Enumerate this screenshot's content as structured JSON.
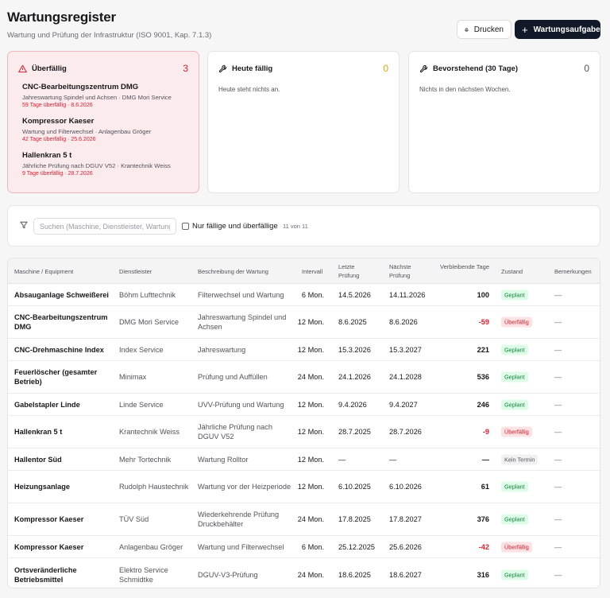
{
  "header": {
    "title": "Wartungsregister",
    "subtitle": "Wartung und Prüfung der Infrastruktur (ISO 9001, Kap. 7.1.3)",
    "print_label": "Drucken",
    "add_label": "Wartungsaufgabe"
  },
  "cards": {
    "overdue": {
      "title": "Überfällig",
      "count": "3",
      "items": [
        {
          "name": "CNC-Bearbeitungszentrum DMG",
          "desc": "Jahreswartung Spindel und Achsen · DMG Mori Service",
          "due": "59 Tage überfällig · 8.6.2026"
        },
        {
          "name": "Kompressor Kaeser",
          "desc": "Wartung und Filterwechsel · Anlagenbau Gröger",
          "due": "42 Tage überfällig · 25.6.2026"
        },
        {
          "name": "Hallenkran 5 t",
          "desc": "Jährliche Prüfung nach DGUV V52 · Krantechnik Weiss",
          "due": "9 Tage überfällig · 28.7.2026"
        }
      ]
    },
    "today": {
      "title": "Heute fällig",
      "count": "0",
      "empty": "Heute steht nichts an."
    },
    "upcoming": {
      "title": "Bevorstehend (30 Tage)",
      "count": "0",
      "empty": "Nichts in den nächsten Wochen."
    }
  },
  "filter": {
    "search_placeholder": "Suchen (Maschine, Dienstleister, Wartung)",
    "checkbox_label": "Nur fällige und überfällige",
    "count": "11 von 11"
  },
  "table": {
    "headers": {
      "name": "Maschine / Equipment",
      "provider": "Dienstleister",
      "desc": "Beschreibung der Wartung",
      "interval": "Intervall",
      "last": "Letzte Prüfung",
      "next": "Nächste Prüfung",
      "days": "Verbleibende Tage",
      "state": "Zustand",
      "remarks": "Bemerkungen"
    },
    "rows": [
      {
        "name": "Absauganlage Schweißerei",
        "provider": "Böhm Lufttechnik",
        "desc": "Filterwechsel und Wartung",
        "interval": "6 Mon.",
        "last": "14.5.2026",
        "next": "14.11.2026",
        "days": "100",
        "days_status": "ok",
        "state": "Geplant",
        "state_type": "planned",
        "remarks": "—"
      },
      {
        "name": "CNC-Bearbeitungszentrum DMG",
        "provider": "DMG Mori Service",
        "desc": "Jahreswartung Spindel und Achsen",
        "interval": "12 Mon.",
        "last": "8.6.2025",
        "next": "8.6.2026",
        "days": "-59",
        "days_status": "overdue",
        "state": "Überfällig",
        "state_type": "overdue",
        "remarks": "—"
      },
      {
        "name": "CNC-Drehmaschine Index",
        "provider": "Index Service",
        "desc": "Jahreswartung",
        "interval": "12 Mon.",
        "last": "15.3.2026",
        "next": "15.3.2027",
        "days": "221",
        "days_status": "ok",
        "state": "Geplant",
        "state_type": "planned",
        "remarks": "—"
      },
      {
        "name": "Feuerlöscher (gesamter Betrieb)",
        "provider": "Minimax",
        "desc": "Prüfung und Auffüllen",
        "interval": "24 Mon.",
        "last": "24.1.2026",
        "next": "24.1.2028",
        "days": "536",
        "days_status": "ok",
        "state": "Geplant",
        "state_type": "planned",
        "remarks": "—"
      },
      {
        "name": "Gabelstapler Linde",
        "provider": "Linde Service",
        "desc": "UVV-Prüfung und Wartung",
        "interval": "12 Mon.",
        "last": "9.4.2026",
        "next": "9.4.2027",
        "days": "246",
        "days_status": "ok",
        "state": "Geplant",
        "state_type": "planned",
        "remarks": "—"
      },
      {
        "name": "Hallenkran 5 t",
        "provider": "Krantechnik Weiss",
        "desc": "Jährliche Prüfung nach DGUV V52",
        "interval": "12 Mon.",
        "last": "28.7.2025",
        "next": "28.7.2026",
        "days": "-9",
        "days_status": "overdue",
        "state": "Überfällig",
        "state_type": "overdue",
        "remarks": "—"
      },
      {
        "name": "Hallentor Süd",
        "provider": "Mehr Tortechnik",
        "desc": "Wartung Rolltor",
        "interval": "12 Mon.",
        "last": "—",
        "next": "—",
        "days": "—",
        "days_status": "ok",
        "state": "Kein Termin",
        "state_type": "none",
        "remarks": "—"
      },
      {
        "name": "Heizungsanlage",
        "provider": "Rudolph Haustechnik",
        "desc": "Wartung vor der Heizperiode",
        "interval": "12 Mon.",
        "last": "6.10.2025",
        "next": "6.10.2026",
        "days": "61",
        "days_status": "ok",
        "state": "Geplant",
        "state_type": "planned",
        "remarks": "—"
      },
      {
        "name": "Kompressor Kaeser",
        "provider": "TÜV Süd",
        "desc": "Wiederkehrende Prüfung Druckbehälter",
        "interval": "24 Mon.",
        "last": "17.8.2025",
        "next": "17.8.2027",
        "days": "376",
        "days_status": "ok",
        "state": "Geplant",
        "state_type": "planned",
        "remarks": "—"
      },
      {
        "name": "Kompressor Kaeser",
        "provider": "Anlagenbau Gröger",
        "desc": "Wartung und Filterwechsel",
        "interval": "6 Mon.",
        "last": "25.12.2025",
        "next": "25.6.2026",
        "days": "-42",
        "days_status": "overdue",
        "state": "Überfällig",
        "state_type": "overdue",
        "remarks": "—"
      },
      {
        "name": "Ortsveränderliche Betriebsmittel",
        "provider": "Elektro Service Schmidtke",
        "desc": "DGUV-V3-Prüfung",
        "interval": "24 Mon.",
        "last": "18.6.2025",
        "next": "18.6.2027",
        "days": "316",
        "days_status": "ok",
        "state": "Geplant",
        "state_type": "planned",
        "remarks": "—"
      }
    ]
  },
  "colors": {
    "accent": "#111827",
    "overdue": "#e11d2f",
    "today": "#f59e0b",
    "planned": "#15803d"
  }
}
